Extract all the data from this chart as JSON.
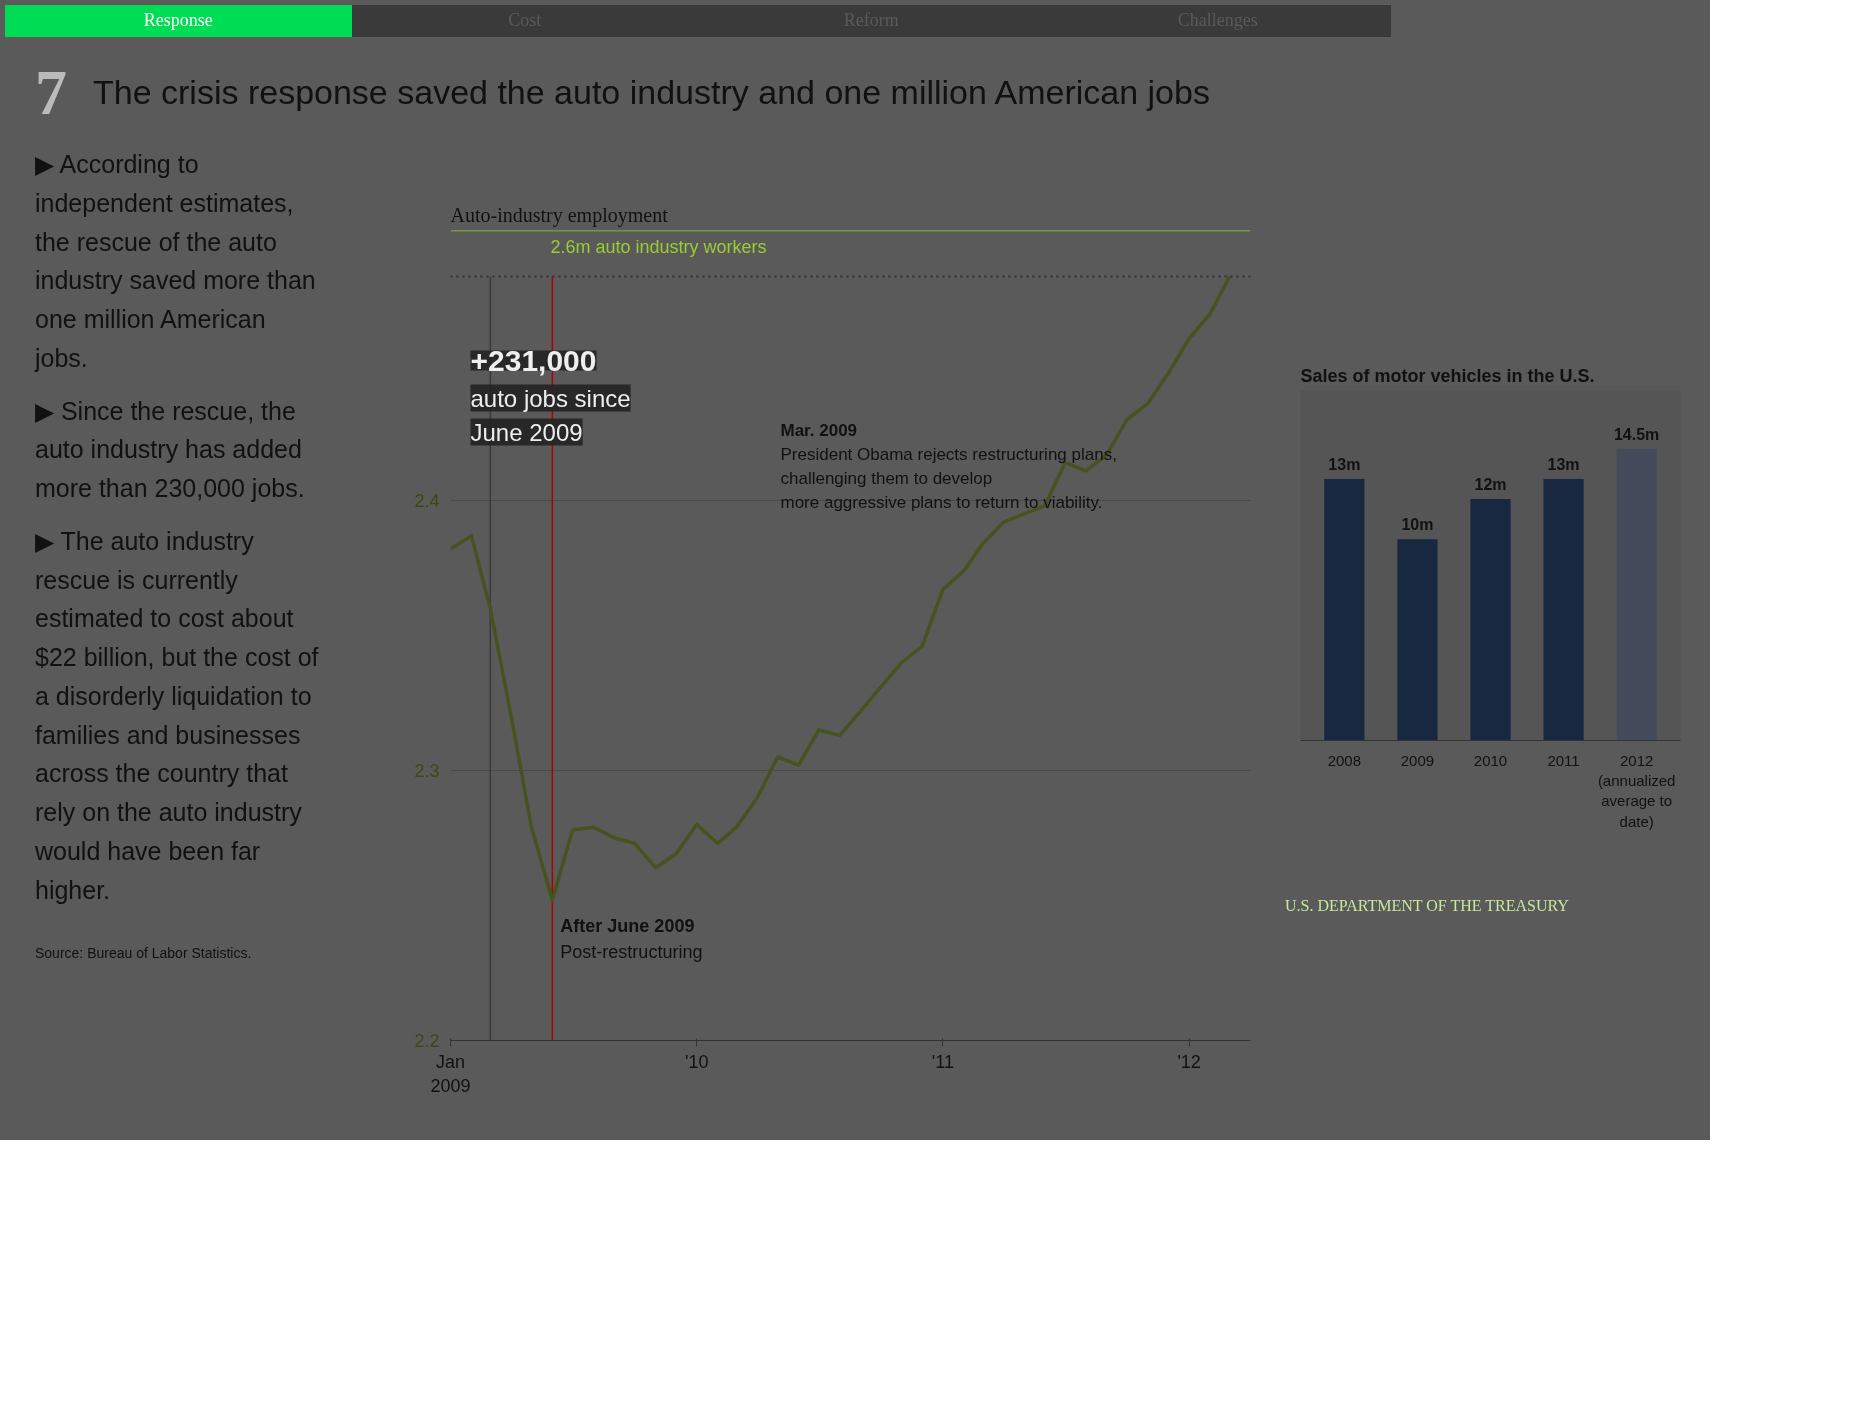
{
  "chart_data": [
    {
      "type": "line",
      "title": "The crisis response saved the auto industry and one million American jobs",
      "subtitle": "Auto-industry employment",
      "x": [
        "2009-01",
        "2009-02",
        "2009-03",
        "2009-04",
        "2009-05",
        "2009-06",
        "2009-07",
        "2009-08",
        "2009-09",
        "2009-10",
        "2009-11",
        "2009-12",
        "2010-01",
        "2010-02",
        "2010-03",
        "2010-04",
        "2010-05",
        "2010-06",
        "2010-07",
        "2010-08",
        "2010-09",
        "2010-10",
        "2010-11",
        "2010-12",
        "2011-01",
        "2011-02",
        "2011-03",
        "2011-04",
        "2011-05",
        "2011-06",
        "2011-07",
        "2011-08",
        "2011-09",
        "2011-10",
        "2011-11",
        "2011-12",
        "2012-01",
        "2012-02",
        "2012-03"
      ],
      "series": [
        {
          "color": "#46531f",
          "values": [
            2.382,
            2.387,
            2.36,
            2.32,
            2.279,
            2.252,
            2.278,
            2.279,
            2.275,
            2.273,
            2.264,
            2.269,
            2.28,
            2.273,
            2.279,
            2.29,
            2.305,
            2.302,
            2.315,
            2.313,
            2.322,
            2.331,
            2.34,
            2.346,
            2.367,
            2.374,
            2.384,
            2.392,
            2.395,
            2.398,
            2.414,
            2.411,
            2.417,
            2.43,
            2.436,
            2.447,
            2.46,
            2.469,
            2.483
          ]
        }
      ],
      "xlim": [
        "2009-01",
        "2012-04"
      ],
      "xticks": [
        {
          "value": "2009-01",
          "label": "Jan\n2009"
        },
        {
          "value": "2010-01",
          "label": "'10"
        },
        {
          "value": "2011-01",
          "label": "'11"
        },
        {
          "value": "2012-01",
          "label": "'12"
        }
      ],
      "ylim": [
        2.2,
        2.5
      ],
      "yticks": [
        2.2,
        2.3,
        2.4
      ],
      "grid": "y",
      "line_style": "solid",
      "ref_lines": [
        {
          "axis": "y",
          "value": 2.5,
          "label": "2.6m auto industry workers",
          "color": "#9acd32"
        },
        {
          "axis": "y",
          "value": 2.483,
          "color": "#333333",
          "line_style": "dotted"
        },
        {
          "axis": "x",
          "value": "2009-03",
          "color": "#3a3a3a"
        },
        {
          "axis": "x",
          "value": "2009-06",
          "color": "#b00000"
        }
      ],
      "annotations": [
        "Response",
        "Cost",
        "Reform",
        "Challenges",
        "7",
        "▶ According to independent estimates, the rescue of the auto industry saved more than one million American jobs.",
        "▶ Since the rescue, the auto industry has added more than 230,000 jobs.",
        "▶ The auto industry rescue is currently estimated to cost about $22 billion, but the cost of a disorderly liquidation to families and businesses across the country that rely on the auto industry would have been far higher.",
        "Source: Bureau of Labor Statistics.",
        "U.S. DEPARTMENT OF THE TREASURY",
        "+231,000\nauto jobs since\nJune 2009",
        "Mar. 2009\nPresident Obama rejects restructuring plans,\nchallenging them to develop\nmore aggressive plans to return to viability.",
        {
          "text": "After June 2009\nPost-restructuring",
          "x": "2009-06",
          "y": 2.252
        }
      ]
    },
    {
      "type": "bar",
      "title": "Sales of motor vehicles in the U.S.",
      "categories": [
        "2008",
        "2009",
        "2010",
        "2011",
        "2012 (annualized average to date)"
      ],
      "values": [
        13,
        10,
        12,
        13,
        14.5
      ],
      "value_labels": [
        "13m",
        "10m",
        "12m",
        "13m",
        "14.5m"
      ],
      "colors": [
        "#182840",
        "#182840",
        "#182840",
        "#182840",
        "#444c5c"
      ]
    }
  ]
}
